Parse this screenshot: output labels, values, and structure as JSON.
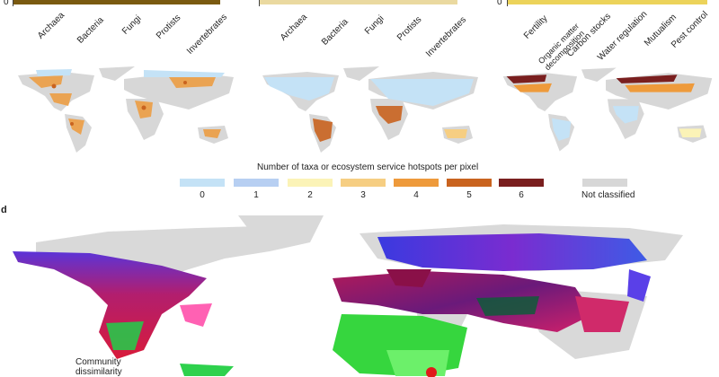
{
  "panel_a": {
    "zero": "0",
    "ticks": [
      "Archaea",
      "Bacteria",
      "Fungi",
      "Protists",
      "Invertebrates"
    ],
    "bar_color": "#7a5a10"
  },
  "panel_b": {
    "zero": "0",
    "ticks": [
      "Archaea",
      "Bacteria",
      "Fungi",
      "Protists",
      "Invertebrates"
    ],
    "bar_color": "#ead9a0"
  },
  "panel_c": {
    "zero": "0",
    "ticks": [
      "Fertility",
      "Organic matter decomposition",
      "Carbon stocks",
      "Water regulation",
      "Mutualism",
      "Pest control"
    ],
    "bar_color": "#ecd35a"
  },
  "legend": {
    "title": "Number of taxa or ecosystem service hotspots per pixel",
    "items": [
      {
        "label": "0",
        "color": "#c4e2f6"
      },
      {
        "label": "1",
        "color": "#b7cff2"
      },
      {
        "label": "2",
        "color": "#fbf3b7"
      },
      {
        "label": "3",
        "color": "#f6ce82"
      },
      {
        "label": "4",
        "color": "#ee9a3b"
      },
      {
        "label": "5",
        "color": "#c9631f"
      },
      {
        "label": "6",
        "color": "#7a1f1f"
      }
    ],
    "not_classified": {
      "label": "Not classified",
      "color": "#d7d7d7"
    }
  },
  "panel_d": {
    "letter": "d",
    "colorbar_title": "Community dissimilarity"
  }
}
